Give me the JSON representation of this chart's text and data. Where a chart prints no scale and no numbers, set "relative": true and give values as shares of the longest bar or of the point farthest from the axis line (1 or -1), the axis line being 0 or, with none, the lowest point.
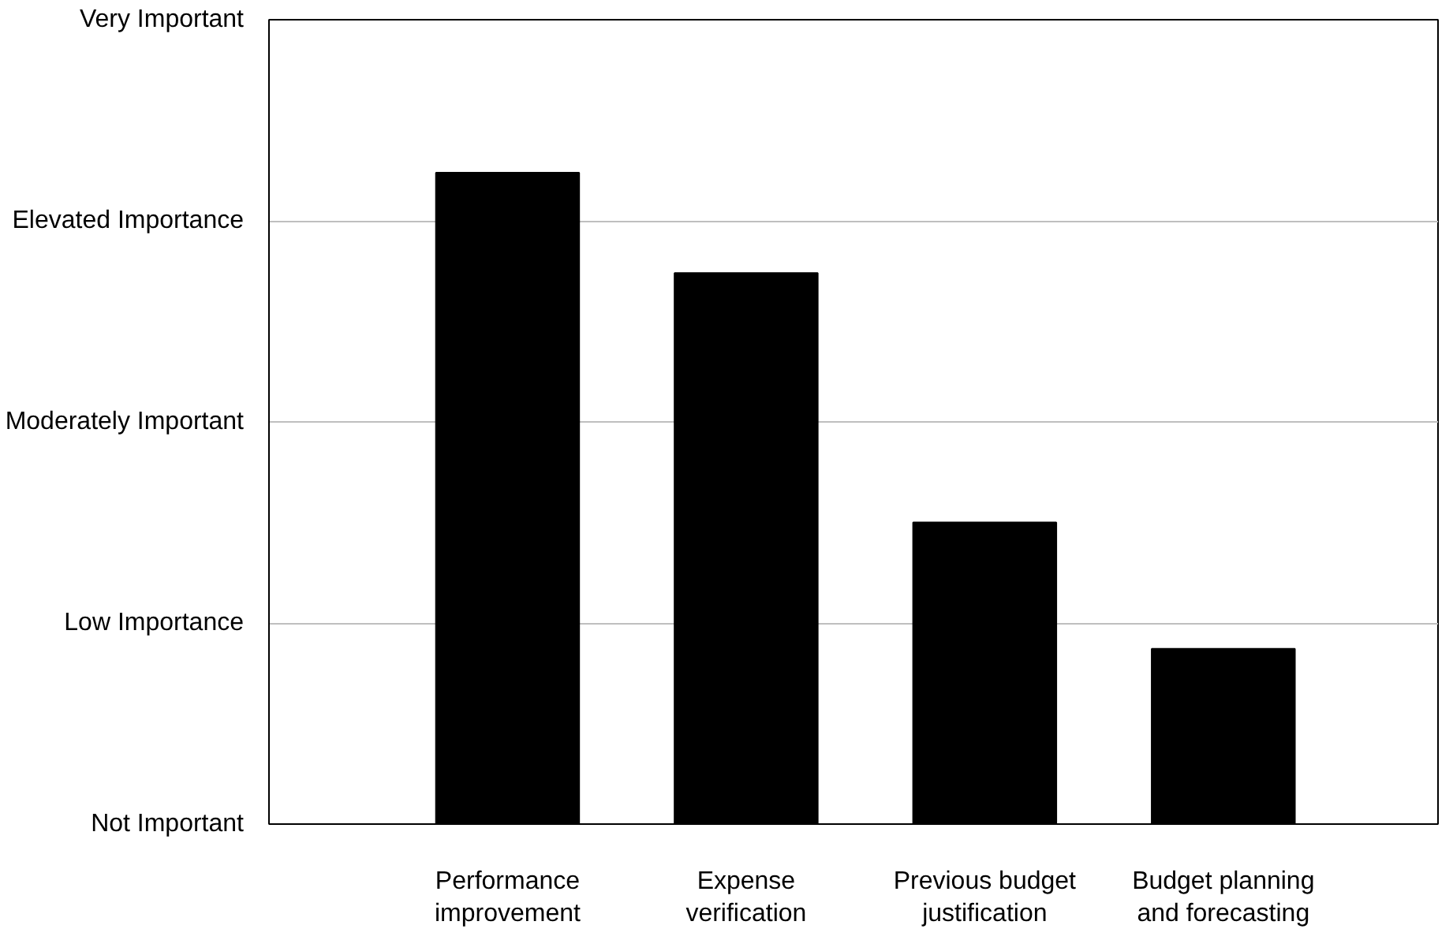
{
  "chart_data": {
    "type": "bar",
    "relative": true,
    "categories": [
      "Performance improvement",
      "Expense verification",
      "Previous budget justification",
      "Budget planning and forecasting"
    ],
    "values": [
      1,
      0.846,
      0.463,
      0.269
    ],
    "color": "#000000",
    "annotations": [
      "Not Important",
      "Low Importance",
      "Moderately Important",
      "Elevated Importance",
      "Very Important"
    ],
    "grid": "y"
  }
}
